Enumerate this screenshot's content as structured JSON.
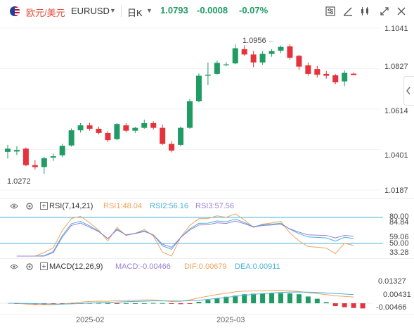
{
  "toolbar": {
    "symbol_cn": "欧元/美元",
    "symbol_code": "EURUSD",
    "period": "日K",
    "price": "1.0793",
    "change": "-0.0008",
    "change_pct": "-0.07%",
    "colors": {
      "up": "#1f9c63",
      "down": "#e5323b",
      "accent": "#e74c3c"
    },
    "icons": [
      "indicator-settings-icon",
      "draw-tools-icon",
      "chart-type-icon",
      "fullscreen-icon",
      "close-icon"
    ]
  },
  "main_chart": {
    "price_axis": [
      "1.1041",
      "1.0827",
      "1.0614",
      "1.0401",
      "1.0187"
    ],
    "high_label": "1.0956",
    "low_label": "1.0272"
  },
  "rsi": {
    "title": "RSI(7,14,21)",
    "rsi1": "RSI1:48.04",
    "rsi2": "RSI2:56.16",
    "rsi3": "RSI3:57.56",
    "axis": [
      "80.00",
      "84.84",
      "59.06",
      "50.00",
      "33.28"
    ],
    "colors": {
      "rsi1": "#f0a35e",
      "rsi2": "#4ab0d9",
      "rsi3": "#9b7fd4"
    }
  },
  "macd": {
    "title": "MACD(12,26,9)",
    "macd": "MACD:-0.00466",
    "dif": "DIF:0.00679",
    "dea": "DEA:0.00911",
    "axis": [
      "0.01327",
      "0.00431",
      "-0.00466"
    ],
    "colors": {
      "macd": "#9b7fd4",
      "dif": "#f0a35e",
      "dea": "#4ab0d9"
    }
  },
  "dates": [
    "2025-02",
    "2025-03"
  ],
  "chart_data": {
    "type": "candlestick",
    "ylim": [
      1.0187,
      1.1041
    ],
    "candles": [
      {
        "o": 1.0388,
        "h": 1.0425,
        "l": 1.0352,
        "c": 1.0405
      },
      {
        "o": 1.039,
        "h": 1.0418,
        "l": 1.0372,
        "c": 1.0398
      },
      {
        "o": 1.0405,
        "h": 1.0412,
        "l": 1.0312,
        "c": 1.0318
      },
      {
        "o": 1.0318,
        "h": 1.0345,
        "l": 1.0295,
        "c": 1.0308
      },
      {
        "o": 1.0308,
        "h": 1.0362,
        "l": 1.0272,
        "c": 1.0355
      },
      {
        "o": 1.0358,
        "h": 1.038,
        "l": 1.034,
        "c": 1.0365
      },
      {
        "o": 1.037,
        "h": 1.043,
        "l": 1.036,
        "c": 1.042
      },
      {
        "o": 1.0422,
        "h": 1.0512,
        "l": 1.0415,
        "c": 1.0502
      },
      {
        "o": 1.0502,
        "h": 1.054,
        "l": 1.049,
        "c": 1.0528
      },
      {
        "o": 1.0528,
        "h": 1.0542,
        "l": 1.05,
        "c": 1.051
      },
      {
        "o": 1.051,
        "h": 1.0522,
        "l": 1.048,
        "c": 1.0488
      },
      {
        "o": 1.0488,
        "h": 1.0498,
        "l": 1.044,
        "c": 1.045
      },
      {
        "o": 1.0455,
        "h": 1.054,
        "l": 1.045,
        "c": 1.0535
      },
      {
        "o": 1.0528,
        "h": 1.054,
        "l": 1.049,
        "c": 1.05
      },
      {
        "o": 1.05,
        "h": 1.052,
        "l": 1.0488,
        "c": 1.0515
      },
      {
        "o": 1.0515,
        "h": 1.0558,
        "l": 1.051,
        "c": 1.054
      },
      {
        "o": 1.054,
        "h": 1.055,
        "l": 1.0505,
        "c": 1.0515
      },
      {
        "o": 1.0515,
        "h": 1.0532,
        "l": 1.0425,
        "c": 1.043
      },
      {
        "o": 1.043,
        "h": 1.0445,
        "l": 1.0385,
        "c": 1.0395
      },
      {
        "o": 1.0425,
        "h": 1.0522,
        "l": 1.0418,
        "c": 1.0515
      },
      {
        "o": 1.0515,
        "h": 1.0668,
        "l": 1.051,
        "c": 1.0655
      },
      {
        "o": 1.0655,
        "h": 1.0802,
        "l": 1.065,
        "c": 1.079
      },
      {
        "o": 1.079,
        "h": 1.086,
        "l": 1.074,
        "c": 1.0795
      },
      {
        "o": 1.08,
        "h": 1.087,
        "l": 1.0795,
        "c": 1.0858
      },
      {
        "o": 1.085,
        "h": 1.0862,
        "l": 1.084,
        "c": 1.085
      },
      {
        "o": 1.0855,
        "h": 1.0955,
        "l": 1.085,
        "c": 1.0935
      },
      {
        "o": 1.093,
        "h": 1.095,
        "l": 1.0895,
        "c": 1.0902
      },
      {
        "o": 1.0902,
        "h": 1.092,
        "l": 1.0835,
        "c": 1.086
      },
      {
        "o": 1.086,
        "h": 1.092,
        "l": 1.0848,
        "c": 1.0905
      },
      {
        "o": 1.0905,
        "h": 1.093,
        "l": 1.089,
        "c": 1.092
      },
      {
        "o": 1.0922,
        "h": 1.095,
        "l": 1.091,
        "c": 1.0942
      },
      {
        "o": 1.0945,
        "h": 1.0956,
        "l": 1.0875,
        "c": 1.0885
      },
      {
        "o": 1.0895,
        "h": 1.09,
        "l": 1.082,
        "c": 1.0838
      },
      {
        "o": 1.0845,
        "h": 1.086,
        "l": 1.079,
        "c": 1.08
      },
      {
        "o": 1.0825,
        "h": 1.0842,
        "l": 1.078,
        "c": 1.0795
      },
      {
        "o": 1.08,
        "h": 1.0815,
        "l": 1.0775,
        "c": 1.079
      },
      {
        "o": 1.0792,
        "h": 1.08,
        "l": 1.0745,
        "c": 1.0755
      },
      {
        "o": 1.076,
        "h": 1.0818,
        "l": 1.0735,
        "c": 1.0805
      },
      {
        "o": 1.0801,
        "h": 1.0806,
        "l": 1.0795,
        "c": 1.0793
      }
    ],
    "macd_hist": [
      -0.0006,
      -0.0005,
      -0.001,
      -0.0012,
      -0.001,
      -0.0008,
      -0.0005,
      -0.0002,
      0.0002,
      0.0003,
      0.0001,
      -0.0001,
      0.0001,
      0.0,
      0.0001,
      0.0003,
      0.0002,
      -0.0003,
      -0.0008,
      -0.0004,
      0.0012,
      0.003,
      0.0045,
      0.0058,
      0.0068,
      0.008,
      0.0085,
      0.0086,
      0.0088,
      0.009,
      0.0088,
      0.008,
      0.006,
      0.004,
      0.001,
      -0.0025,
      -0.0035,
      -0.0042,
      -0.0046
    ]
  }
}
